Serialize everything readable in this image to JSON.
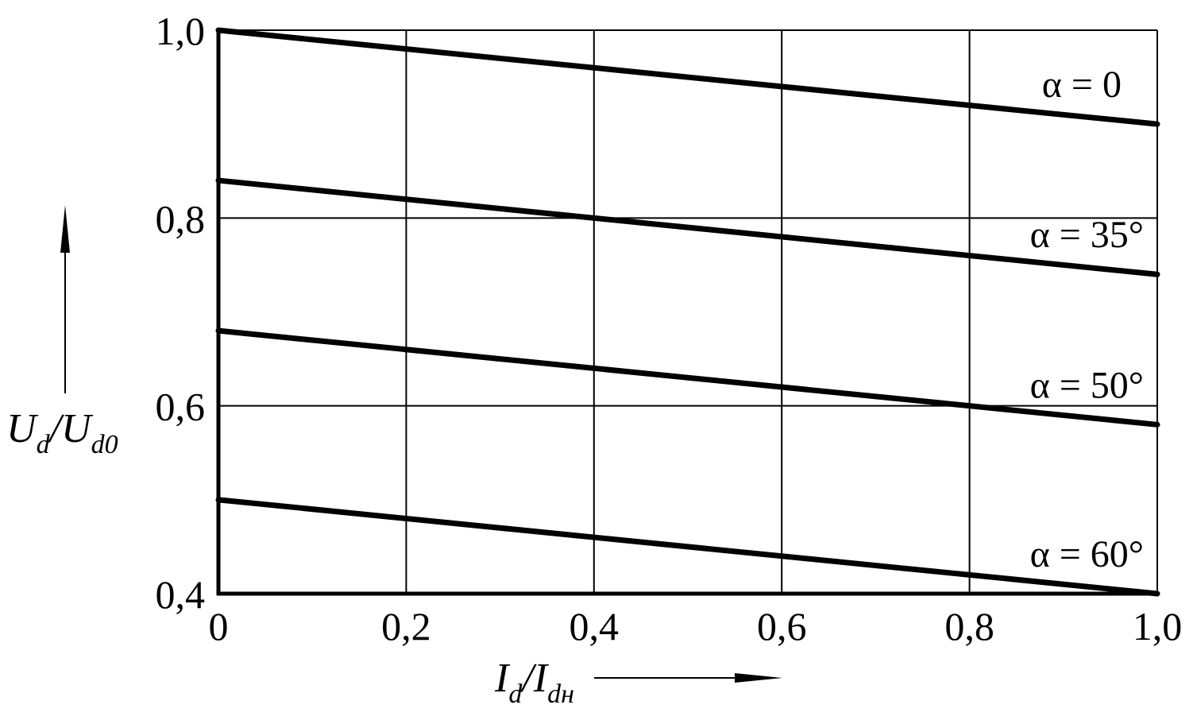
{
  "chart_data": {
    "type": "line",
    "title": "",
    "x": [
      0,
      1.0
    ],
    "xlim": [
      0,
      1.0
    ],
    "ylim": [
      0.4,
      1.0
    ],
    "x_ticks": [
      0,
      0.2,
      0.4,
      0.6,
      0.8,
      1.0
    ],
    "x_tick_labels": [
      "0",
      "0,2",
      "0,4",
      "0,6",
      "0,8",
      "1,0"
    ],
    "y_ticks": [
      0.4,
      0.6,
      0.8,
      1.0
    ],
    "y_tick_labels": [
      "0,4",
      "0,6",
      "0,8",
      "1,0"
    ],
    "grid": true,
    "xlabel": {
      "main1": "I",
      "sub1": "d",
      "sep": "/",
      "main2": "I",
      "sub2": "dн"
    },
    "ylabel": {
      "main1": "U",
      "sub1": "d",
      "sep": "/",
      "main2": "U",
      "sub2": "d0"
    },
    "series": [
      {
        "label": "α = 0",
        "values": [
          1.0,
          0.9
        ]
      },
      {
        "label": "α = 35°",
        "values": [
          0.84,
          0.74
        ]
      },
      {
        "label": "α = 50°",
        "values": [
          0.68,
          0.58
        ]
      },
      {
        "label": "α = 60°",
        "values": [
          0.5,
          0.4
        ]
      }
    ],
    "colors": {
      "line": "#000000",
      "grid": "#000000"
    }
  }
}
